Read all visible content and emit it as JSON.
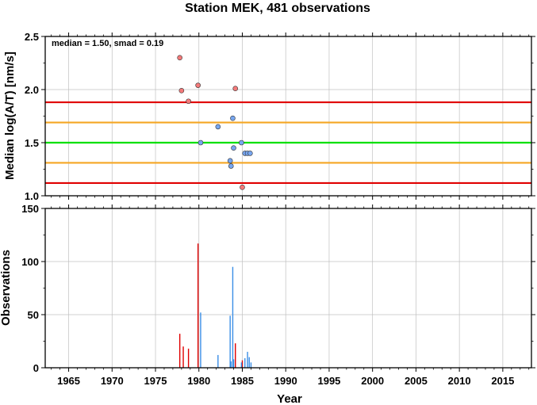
{
  "chart_data": [
    {
      "type": "scatter",
      "title": "Station MEK, 481 observations",
      "ylabel": "Median log(A/T) [nm/s]",
      "annotation": "median = 1.50, smad = 0.19",
      "xlim": [
        1962.3,
        2018.3
      ],
      "ylim": [
        1.0,
        2.5
      ],
      "yticks": [
        "1.0",
        "1.5",
        "2.0",
        "2.5"
      ],
      "reference_lines": [
        {
          "y": 1.5,
          "color": "#00e000"
        },
        {
          "y": 1.69,
          "color": "#f5a623"
        },
        {
          "y": 1.31,
          "color": "#f5a623"
        },
        {
          "y": 1.88,
          "color": "#e00000"
        },
        {
          "y": 1.12,
          "color": "#e00000"
        }
      ],
      "series": [
        {
          "color": "#f47a7a",
          "points": [
            [
              1977.8,
              2.3
            ],
            [
              1978.0,
              1.99
            ],
            [
              1978.8,
              1.89
            ],
            [
              1979.9,
              2.04
            ],
            [
              1984.2,
              2.01
            ],
            [
              1985.0,
              1.08
            ]
          ]
        },
        {
          "color": "#77a6f0",
          "points": [
            [
              1980.2,
              1.5
            ],
            [
              1982.2,
              1.65
            ],
            [
              1983.6,
              1.33
            ],
            [
              1983.7,
              1.28
            ],
            [
              1983.9,
              1.73
            ],
            [
              1984.0,
              1.45
            ],
            [
              1984.9,
              1.5
            ],
            [
              1985.3,
              1.4
            ],
            [
              1985.6,
              1.4
            ],
            [
              1985.9,
              1.4
            ]
          ]
        }
      ]
    },
    {
      "type": "bar",
      "xlabel": "Year",
      "ylabel": "Observations",
      "xlim": [
        1962.3,
        2018.3
      ],
      "ylim": [
        0,
        150
      ],
      "yticks": [
        "0",
        "50",
        "100",
        "150"
      ],
      "xticks": [
        "1965",
        "1970",
        "1975",
        "1980",
        "1985",
        "1990",
        "1995",
        "2000",
        "2005",
        "2010",
        "2015"
      ],
      "series": [
        {
          "color": "#e00000",
          "bars": [
            [
              1977.8,
              32
            ],
            [
              1978.2,
              20
            ],
            [
              1978.8,
              18
            ],
            [
              1979.9,
              117
            ],
            [
              1984.2,
              23
            ],
            [
              1985.0,
              7
            ]
          ]
        },
        {
          "color": "#3a8ee6",
          "bars": [
            [
              1980.2,
              52
            ],
            [
              1982.2,
              12
            ],
            [
              1983.6,
              49
            ],
            [
              1983.7,
              6
            ],
            [
              1983.9,
              95
            ],
            [
              1984.0,
              8
            ],
            [
              1984.9,
              5
            ],
            [
              1985.3,
              9
            ],
            [
              1985.6,
              15
            ],
            [
              1985.8,
              10
            ],
            [
              1986.0,
              5
            ]
          ]
        }
      ]
    }
  ]
}
